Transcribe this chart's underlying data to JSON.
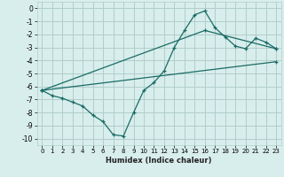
{
  "xlabel": "Humidex (Indice chaleur)",
  "background_color": "#d8eeec",
  "grid_color": "#b0ceca",
  "line_color": "#1a6b65",
  "marker": "+",
  "xlim": [
    -0.5,
    23.5
  ],
  "ylim": [
    -10.5,
    0.5
  ],
  "xticks": [
    0,
    1,
    2,
    3,
    4,
    5,
    6,
    7,
    8,
    9,
    10,
    11,
    12,
    13,
    14,
    15,
    16,
    17,
    18,
    19,
    20,
    21,
    22,
    23
  ],
  "yticks": [
    0,
    -1,
    -2,
    -3,
    -4,
    -5,
    -6,
    -7,
    -8,
    -9,
    -10
  ],
  "line1_x": [
    0,
    1,
    2,
    3,
    4,
    5,
    6,
    7,
    8,
    9,
    10,
    11,
    12,
    13,
    14,
    15,
    16,
    17,
    18,
    19,
    20,
    21,
    22,
    23
  ],
  "line1_y": [
    -6.3,
    -6.7,
    -6.9,
    -7.2,
    -7.5,
    -8.2,
    -8.7,
    -9.7,
    -9.8,
    -8.0,
    -6.3,
    -5.7,
    -4.8,
    -3.0,
    -1.7,
    -0.5,
    -0.2,
    -1.5,
    -2.2,
    -2.9,
    -3.1,
    -2.3,
    -2.6,
    -3.1
  ],
  "line2_x": [
    0,
    23
  ],
  "line2_y": [
    -6.3,
    -4.1
  ],
  "line3_x": [
    0,
    16,
    23
  ],
  "line3_y": [
    -6.3,
    -1.7,
    -3.1
  ]
}
